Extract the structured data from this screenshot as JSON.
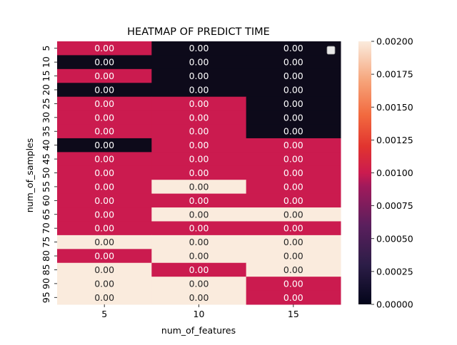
{
  "colors": {
    "low": "#0d0a1a",
    "mid": "#cb1b4f",
    "high": "#faebdd"
  },
  "chart_data": {
    "type": "heatmap",
    "title": "HEATMAP OF PREDICT TIME",
    "xlabel": "num_of_features",
    "ylabel": "num_of_samples",
    "x_categories": [
      "5",
      "10",
      "15"
    ],
    "y_categories": [
      "5",
      "10",
      "15",
      "20",
      "25",
      "30",
      "35",
      "40",
      "45",
      "50",
      "55",
      "60",
      "65",
      "70",
      "75",
      "80",
      "85",
      "90",
      "95"
    ],
    "values": [
      [
        0.001,
        0.0,
        0.0
      ],
      [
        0.0,
        0.0,
        0.0
      ],
      [
        0.001,
        0.0,
        0.0
      ],
      [
        0.0,
        0.0,
        0.0
      ],
      [
        0.001,
        0.001,
        0.0
      ],
      [
        0.001,
        0.001,
        0.0
      ],
      [
        0.001,
        0.001,
        0.0
      ],
      [
        0.0,
        0.001,
        0.001
      ],
      [
        0.001,
        0.001,
        0.001
      ],
      [
        0.001,
        0.001,
        0.001
      ],
      [
        0.001,
        0.002,
        0.001
      ],
      [
        0.001,
        0.001,
        0.001
      ],
      [
        0.001,
        0.002,
        0.002
      ],
      [
        0.001,
        0.001,
        0.001
      ],
      [
        0.002,
        0.002,
        0.002
      ],
      [
        0.001,
        0.002,
        0.002
      ],
      [
        0.002,
        0.001,
        0.002
      ],
      [
        0.002,
        0.002,
        0.001
      ],
      [
        0.002,
        0.002,
        0.001
      ]
    ],
    "cell_labels": "0.00",
    "colorbar": {
      "min": 0.0,
      "max": 0.002,
      "ticks": [
        "0.00000",
        "0.00025",
        "0.00050",
        "0.00075",
        "0.00100",
        "0.00125",
        "0.00150",
        "0.00175",
        "0.00200"
      ]
    },
    "legend": "top-right, empty"
  }
}
